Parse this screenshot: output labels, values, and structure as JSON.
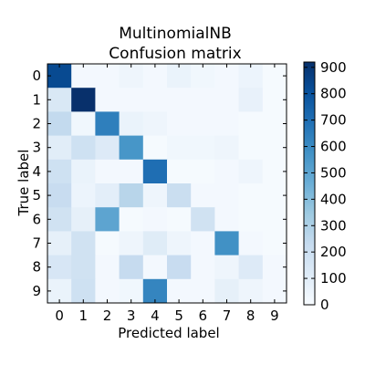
{
  "chart_data": {
    "type": "heatmap",
    "title_lines": [
      "MultinomialNB",
      "Confusion matrix"
    ],
    "xlabel": "Predicted label",
    "ylabel": "True label",
    "x_categories": [
      "0",
      "1",
      "2",
      "3",
      "4",
      "5",
      "6",
      "7",
      "8",
      "9"
    ],
    "y_categories": [
      "0",
      "1",
      "2",
      "3",
      "4",
      "5",
      "6",
      "7",
      "8",
      "9"
    ],
    "matrix": [
      [
        830,
        20,
        20,
        40,
        20,
        60,
        30,
        20,
        50,
        10
      ],
      [
        140,
        920,
        20,
        20,
        20,
        20,
        20,
        20,
        70,
        10
      ],
      [
        240,
        30,
        640,
        60,
        40,
        20,
        20,
        20,
        10,
        10
      ],
      [
        100,
        190,
        120,
        560,
        10,
        30,
        30,
        40,
        10,
        10
      ],
      [
        190,
        60,
        20,
        20,
        700,
        10,
        10,
        20,
        40,
        10
      ],
      [
        220,
        50,
        90,
        270,
        40,
        210,
        20,
        20,
        10,
        10
      ],
      [
        180,
        80,
        500,
        10,
        20,
        10,
        180,
        20,
        10,
        10
      ],
      [
        80,
        180,
        10,
        40,
        110,
        40,
        20,
        580,
        20,
        10
      ],
      [
        150,
        180,
        20,
        230,
        20,
        220,
        20,
        40,
        120,
        20
      ],
      [
        60,
        190,
        20,
        30,
        620,
        20,
        20,
        80,
        40,
        20
      ]
    ],
    "colorbar": {
      "vmin": 0,
      "vmax": 920,
      "ticks": [
        0,
        100,
        200,
        300,
        400,
        500,
        600,
        700,
        800,
        900
      ],
      "colormap": "Blues"
    }
  }
}
